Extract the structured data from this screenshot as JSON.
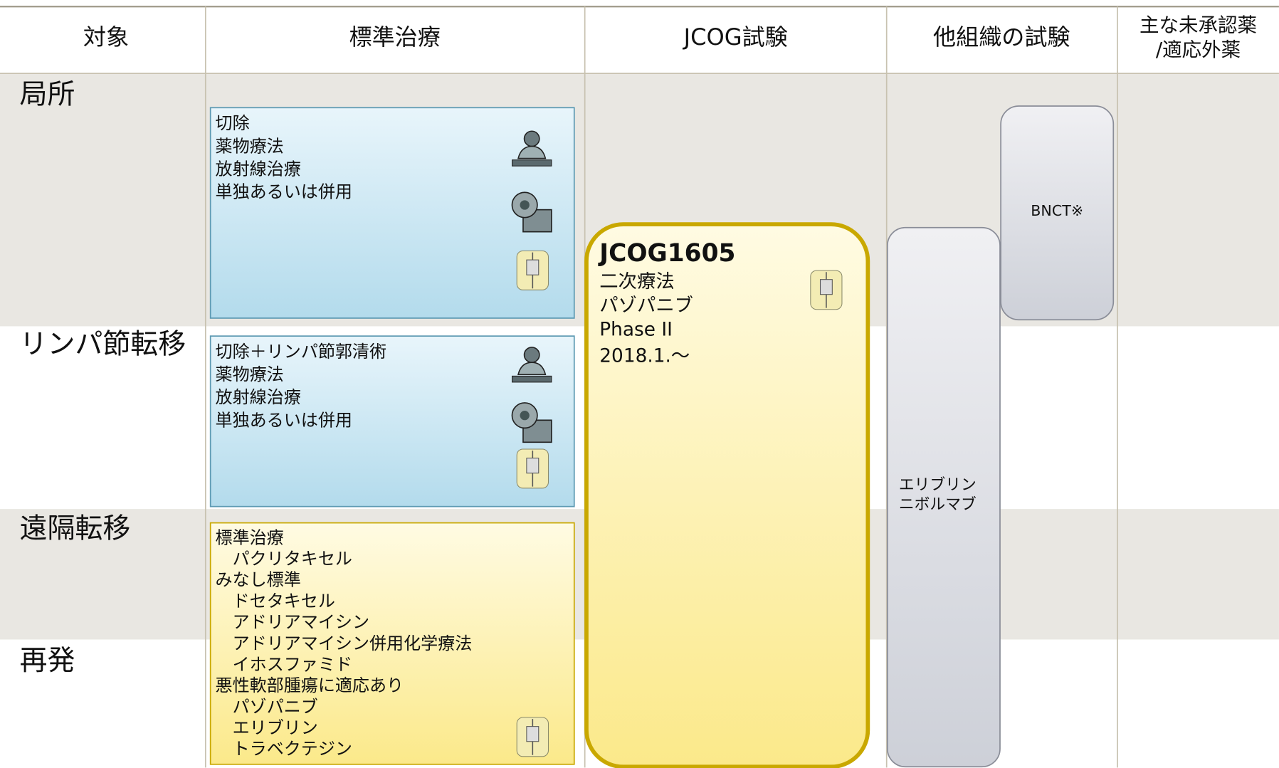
{
  "header": {
    "columns": [
      [
        "対象"
      ],
      [
        "標準治療"
      ],
      [
        "JCOG試験"
      ],
      [
        "他組織の試験"
      ],
      [
        "主な未承認薬",
        "/適応外薬"
      ]
    ]
  },
  "rows": [
    "局所",
    "リンパ節転移",
    "遠隔転移",
    "再発"
  ],
  "standard_treatment": [
    {
      "lines": [
        "切除",
        "薬物療法",
        "放射線治療",
        "単独あるいは併用"
      ]
    },
    {
      "lines": [
        "切除＋リンパ節郭清術",
        "薬物療法",
        "放射線治療",
        "単独あるいは併用"
      ]
    },
    {
      "groups": [
        {
          "heading": "標準治療",
          "items": [
            "パクリタキセル"
          ]
        },
        {
          "heading": "みなし標準",
          "items": [
            "ドセタキセル",
            "アドリアマイシン",
            "アドリアマイシン併用化学療法",
            "イホスファミド"
          ]
        },
        {
          "heading": "悪性軟部腫瘍に適応あり",
          "items": [
            "パゾパニブ",
            "エリブリン",
            "トラベクテジン"
          ]
        }
      ]
    }
  ],
  "jcog_trial": {
    "id": "JCOG1605",
    "lines": [
      "二次療法",
      "パゾパニブ",
      "Phase II",
      "2018.1.～"
    ]
  },
  "other_trials": [
    {
      "lines": [
        "エリブリン",
        "ニボルマブ"
      ]
    },
    {
      "lines": [
        "BNCT※"
      ]
    }
  ]
}
